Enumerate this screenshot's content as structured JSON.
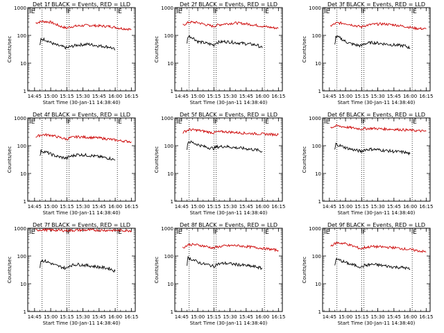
{
  "figure": {
    "background": "#ffffff",
    "colors": {
      "events": "#000000",
      "lld": "#cc0000",
      "axes": "#000000"
    }
  },
  "chart_data": [
    {
      "type": "line",
      "title": "Det 1f BLACK = Events, RED = LLD",
      "xlabel": "Start Time (30-Jan-11 14:38:40)",
      "ylabel": "Counts/sec",
      "x_ticks": [
        "14:45",
        "15:00",
        "15:15",
        "15:30",
        "15:45",
        "16:00",
        "16:15"
      ],
      "xlim": [
        "14:38:40",
        "16:18:40"
      ],
      "y_scale": "log",
      "ylim": [
        1,
        1000
      ],
      "y_ticks": [
        "1",
        "10",
        "100",
        "1000"
      ],
      "markers": [
        {
          "label": "E",
          "time": "14:41"
        },
        {
          "label": "F",
          "time": "15:15"
        },
        {
          "label": "E",
          "time": "16:02"
        }
      ],
      "dotted_lines": [
        "14:52",
        "15:15",
        "15:17",
        "16:02"
      ],
      "series": [
        {
          "name": "LLD",
          "color": "#cc0000",
          "x": [
            "14:46",
            "14:52",
            "15:00",
            "15:08",
            "15:15",
            "15:17",
            "15:25",
            "15:35",
            "15:45",
            "15:55",
            "16:05",
            "16:15"
          ],
          "y": [
            280,
            320,
            300,
            220,
            180,
            200,
            220,
            230,
            220,
            210,
            180,
            165
          ]
        },
        {
          "name": "Events",
          "color": "#000000",
          "x": [
            "14:50",
            "14:51",
            "14:55",
            "15:00",
            "15:05",
            "15:10",
            "15:15",
            "15:17",
            "15:25",
            "15:35",
            "15:45",
            "15:55",
            "16:00"
          ],
          "y": [
            40,
            75,
            70,
            55,
            45,
            40,
            35,
            38,
            45,
            48,
            42,
            38,
            30
          ]
        }
      ]
    },
    {
      "type": "line",
      "title": "Det 2f BLACK = Events, RED = LLD",
      "xlabel": "Start Time (30-Jan-11 14:38:40)",
      "ylabel": "Counts/sec",
      "x_ticks": [
        "14:45",
        "15:00",
        "15:15",
        "15:30",
        "15:45",
        "16:00",
        "16:15"
      ],
      "xlim": [
        "14:38:40",
        "16:18:40"
      ],
      "y_scale": "log",
      "ylim": [
        1,
        1000
      ],
      "y_ticks": [
        "1",
        "10",
        "100",
        "1000"
      ],
      "markers": [
        {
          "label": "E",
          "time": "14:41"
        },
        {
          "label": "F",
          "time": "15:15"
        },
        {
          "label": "E",
          "time": "16:02"
        }
      ],
      "dotted_lines": [
        "14:52",
        "15:15",
        "15:17",
        "16:02"
      ],
      "series": [
        {
          "name": "LLD",
          "color": "#cc0000",
          "x": [
            "14:46",
            "14:52",
            "15:00",
            "15:08",
            "15:15",
            "15:17",
            "15:25",
            "15:35",
            "15:45",
            "15:55",
            "16:05",
            "16:15"
          ],
          "y": [
            230,
            300,
            290,
            240,
            210,
            230,
            260,
            280,
            260,
            230,
            200,
            180
          ]
        },
        {
          "name": "Events",
          "color": "#000000",
          "x": [
            "14:50",
            "14:51",
            "14:55",
            "15:00",
            "15:05",
            "15:10",
            "15:15",
            "15:17",
            "15:25",
            "15:35",
            "15:45",
            "15:55",
            "16:00"
          ],
          "y": [
            55,
            95,
            85,
            60,
            55,
            50,
            45,
            55,
            60,
            55,
            50,
            45,
            35
          ]
        }
      ]
    },
    {
      "type": "line",
      "title": "Det 3f BLACK = Events, RED = LLD",
      "xlabel": "Start Time (30-Jan-11 14:38:40)",
      "ylabel": "Counts/sec",
      "x_ticks": [
        "14:45",
        "15:00",
        "15:15",
        "15:30",
        "15:45",
        "16:00",
        "16:15"
      ],
      "xlim": [
        "14:38:40",
        "16:18:40"
      ],
      "y_scale": "log",
      "ylim": [
        1,
        1000
      ],
      "y_ticks": [
        "1",
        "10",
        "100",
        "1000"
      ],
      "markers": [
        {
          "label": "E",
          "time": "14:41"
        },
        {
          "label": "F",
          "time": "15:15"
        },
        {
          "label": "E",
          "time": "16:02"
        }
      ],
      "dotted_lines": [
        "14:52",
        "15:15",
        "15:17",
        "16:02"
      ],
      "series": [
        {
          "name": "LLD",
          "color": "#cc0000",
          "x": [
            "14:46",
            "14:52",
            "15:00",
            "15:08",
            "15:15",
            "15:17",
            "15:25",
            "15:35",
            "15:45",
            "15:55",
            "16:05",
            "16:15"
          ],
          "y": [
            220,
            280,
            270,
            230,
            200,
            220,
            250,
            260,
            240,
            210,
            180,
            170
          ]
        },
        {
          "name": "Events",
          "color": "#000000",
          "x": [
            "14:50",
            "14:51",
            "14:55",
            "15:00",
            "15:05",
            "15:10",
            "15:15",
            "15:17",
            "15:25",
            "15:35",
            "15:45",
            "15:55",
            "16:00"
          ],
          "y": [
            45,
            90,
            80,
            60,
            50,
            45,
            42,
            50,
            55,
            50,
            45,
            42,
            35
          ]
        }
      ]
    },
    {
      "type": "line",
      "title": "Det 4f BLACK = Events, RED = LLD",
      "xlabel": "Start Time (30-Jan-11 14:38:40)",
      "ylabel": "Counts/sec",
      "x_ticks": [
        "14:45",
        "15:00",
        "15:15",
        "15:30",
        "15:45",
        "16:00",
        "16:15"
      ],
      "xlim": [
        "14:38:40",
        "16:18:40"
      ],
      "y_scale": "log",
      "ylim": [
        1,
        1000
      ],
      "y_ticks": [
        "1",
        "10",
        "100",
        "1000"
      ],
      "markers": [
        {
          "label": "E",
          "time": "14:41"
        },
        {
          "label": "F",
          "time": "15:15"
        },
        {
          "label": "E",
          "time": "16:02"
        }
      ],
      "dotted_lines": [
        "14:52",
        "15:15",
        "15:17",
        "16:02"
      ],
      "series": [
        {
          "name": "LLD",
          "color": "#cc0000",
          "x": [
            "14:46",
            "14:52",
            "15:00",
            "15:08",
            "15:15",
            "15:17",
            "15:25",
            "15:35",
            "15:45",
            "15:55",
            "16:05",
            "16:15"
          ],
          "y": [
            210,
            250,
            240,
            200,
            170,
            190,
            210,
            200,
            190,
            170,
            150,
            140
          ]
        },
        {
          "name": "Events",
          "color": "#000000",
          "x": [
            "14:50",
            "14:51",
            "14:55",
            "15:00",
            "15:05",
            "15:10",
            "15:15",
            "15:17",
            "15:25",
            "15:35",
            "15:45",
            "15:55",
            "16:00"
          ],
          "y": [
            40,
            65,
            60,
            50,
            42,
            38,
            35,
            40,
            48,
            45,
            40,
            35,
            30
          ]
        }
      ]
    },
    {
      "type": "line",
      "title": "Det 5f BLACK = Events, RED = LLD",
      "xlabel": "Start Time (30-Jan-11 14:38:40)",
      "ylabel": "Counts/sec",
      "x_ticks": [
        "14:45",
        "15:00",
        "15:15",
        "15:30",
        "15:45",
        "16:00",
        "16:15"
      ],
      "xlim": [
        "14:38:40",
        "16:18:40"
      ],
      "y_scale": "log",
      "ylim": [
        1,
        1000
      ],
      "y_ticks": [
        "1",
        "10",
        "100",
        "1000"
      ],
      "markers": [
        {
          "label": "E",
          "time": "14:41"
        },
        {
          "label": "F",
          "time": "15:15"
        },
        {
          "label": "E",
          "time": "16:02"
        }
      ],
      "dotted_lines": [
        "14:52",
        "15:15",
        "15:17",
        "16:02"
      ],
      "series": [
        {
          "name": "LLD",
          "color": "#cc0000",
          "x": [
            "14:46",
            "14:52",
            "15:00",
            "15:08",
            "15:15",
            "15:17",
            "15:25",
            "15:35",
            "15:45",
            "15:55",
            "16:05",
            "16:15"
          ],
          "y": [
            300,
            380,
            360,
            320,
            290,
            310,
            320,
            300,
            280,
            270,
            260,
            250
          ]
        },
        {
          "name": "Events",
          "color": "#000000",
          "x": [
            "14:50",
            "14:51",
            "14:55",
            "15:00",
            "15:05",
            "15:10",
            "15:15",
            "15:17",
            "15:25",
            "15:35",
            "15:45",
            "15:55",
            "16:00"
          ],
          "y": [
            80,
            140,
            130,
            110,
            95,
            85,
            80,
            90,
            95,
            85,
            78,
            70,
            62
          ]
        }
      ]
    },
    {
      "type": "line",
      "title": "Det 6f BLACK = Events, RED = LLD",
      "xlabel": "Start Time (30-Jan-11 14:38:40)",
      "ylabel": "Counts/sec",
      "x_ticks": [
        "14:45",
        "15:00",
        "15:15",
        "15:30",
        "15:45",
        "16:00",
        "16:15"
      ],
      "xlim": [
        "14:38:40",
        "16:18:40"
      ],
      "y_scale": "log",
      "ylim": [
        1,
        1000
      ],
      "y_ticks": [
        "1",
        "10",
        "100",
        "1000"
      ],
      "markers": [
        {
          "label": "E",
          "time": "14:41"
        },
        {
          "label": "F",
          "time": "15:15"
        },
        {
          "label": "E",
          "time": "16:02"
        }
      ],
      "dotted_lines": [
        "14:52",
        "15:15",
        "15:17",
        "16:02"
      ],
      "series": [
        {
          "name": "LLD",
          "color": "#cc0000",
          "x": [
            "14:46",
            "14:52",
            "15:00",
            "15:08",
            "15:15",
            "15:17",
            "15:25",
            "15:35",
            "15:45",
            "15:55",
            "16:05",
            "16:15"
          ],
          "y": [
            450,
            520,
            470,
            430,
            400,
            410,
            420,
            400,
            390,
            370,
            350,
            330
          ]
        },
        {
          "name": "Events",
          "color": "#000000",
          "x": [
            "14:50",
            "14:51",
            "14:55",
            "15:00",
            "15:05",
            "15:10",
            "15:15",
            "15:17",
            "15:25",
            "15:35",
            "15:45",
            "15:55",
            "16:00"
          ],
          "y": [
            70,
            115,
            100,
            85,
            75,
            68,
            62,
            72,
            75,
            68,
            62,
            58,
            50
          ]
        }
      ]
    },
    {
      "type": "line",
      "title": "Det 7f BLACK = Events, RED = LLD",
      "xlabel": "Start Time (30-Jan-11 14:38:40)",
      "ylabel": "Counts/sec",
      "x_ticks": [
        "14:45",
        "15:00",
        "15:15",
        "15:30",
        "15:45",
        "16:00",
        "16:15"
      ],
      "xlim": [
        "14:38:40",
        "16:18:40"
      ],
      "y_scale": "log",
      "ylim": [
        1,
        1000
      ],
      "y_ticks": [
        "1",
        "10",
        "100",
        "1000"
      ],
      "markers": [
        {
          "label": "E",
          "time": "14:41"
        },
        {
          "label": "F",
          "time": "15:15"
        },
        {
          "label": "E",
          "time": "16:02"
        }
      ],
      "dotted_lines": [
        "14:52",
        "15:15",
        "15:17",
        "16:02"
      ],
      "series": [
        {
          "name": "LLD",
          "color": "#cc0000",
          "x": [
            "14:46",
            "14:52",
            "15:00",
            "15:08",
            "15:15",
            "15:17",
            "15:25",
            "15:35",
            "15:45",
            "15:55",
            "16:05",
            "16:15"
          ],
          "y": [
            850,
            880,
            860,
            840,
            820,
            830,
            850,
            860,
            850,
            840,
            830,
            820
          ]
        },
        {
          "name": "Events",
          "color": "#000000",
          "x": [
            "14:50",
            "14:51",
            "14:55",
            "15:00",
            "15:05",
            "15:10",
            "15:15",
            "15:17",
            "15:25",
            "15:35",
            "15:45",
            "15:55",
            "16:00"
          ],
          "y": [
            40,
            70,
            65,
            55,
            45,
            40,
            35,
            45,
            50,
            45,
            40,
            35,
            28
          ]
        }
      ]
    },
    {
      "type": "line",
      "title": "Det 8f BLACK = Events, RED = LLD",
      "xlabel": "Start Time (30-Jan-11 14:38:40)",
      "ylabel": "Counts/sec",
      "x_ticks": [
        "14:45",
        "15:00",
        "15:15",
        "15:30",
        "15:45",
        "16:00",
        "16:15"
      ],
      "xlim": [
        "14:38:40",
        "16:18:40"
      ],
      "y_scale": "log",
      "ylim": [
        1,
        1000
      ],
      "y_ticks": [
        "1",
        "10",
        "100",
        "1000"
      ],
      "markers": [
        {
          "label": "E",
          "time": "14:41"
        },
        {
          "label": "F",
          "time": "15:15"
        },
        {
          "label": "E",
          "time": "16:02"
        }
      ],
      "dotted_lines": [
        "14:52",
        "15:15",
        "15:17",
        "16:02"
      ],
      "series": [
        {
          "name": "LLD",
          "color": "#cc0000",
          "x": [
            "14:46",
            "14:52",
            "15:00",
            "15:08",
            "15:15",
            "15:17",
            "15:25",
            "15:35",
            "15:45",
            "15:55",
            "16:05",
            "16:15"
          ],
          "y": [
            200,
            260,
            250,
            220,
            190,
            210,
            230,
            240,
            220,
            200,
            180,
            160
          ]
        },
        {
          "name": "Events",
          "color": "#000000",
          "x": [
            "14:50",
            "14:51",
            "14:55",
            "15:00",
            "15:05",
            "15:10",
            "15:15",
            "15:17",
            "15:25",
            "15:35",
            "15:45",
            "15:55",
            "16:00"
          ],
          "y": [
            50,
            85,
            75,
            60,
            52,
            48,
            42,
            50,
            55,
            50,
            45,
            40,
            35
          ]
        }
      ]
    },
    {
      "type": "line",
      "title": "Det 9f BLACK = Events, RED = LLD",
      "xlabel": "Start Time (30-Jan-11 14:38:40)",
      "ylabel": "Counts/sec",
      "x_ticks": [
        "14:45",
        "15:00",
        "15:15",
        "15:30",
        "15:45",
        "16:00",
        "16:15"
      ],
      "xlim": [
        "14:38:40",
        "16:18:40"
      ],
      "y_scale": "log",
      "ylim": [
        1,
        1000
      ],
      "y_ticks": [
        "1",
        "10",
        "100",
        "1000"
      ],
      "markers": [
        {
          "label": "E",
          "time": "14:41"
        },
        {
          "label": "F",
          "time": "15:15"
        },
        {
          "label": "E",
          "time": "16:02"
        }
      ],
      "dotted_lines": [
        "14:52",
        "15:15",
        "15:17",
        "16:02"
      ],
      "series": [
        {
          "name": "LLD",
          "color": "#cc0000",
          "x": [
            "14:46",
            "14:52",
            "15:00",
            "15:08",
            "15:15",
            "15:17",
            "15:25",
            "15:35",
            "15:45",
            "15:55",
            "16:05",
            "16:15"
          ],
          "y": [
            230,
            300,
            280,
            220,
            180,
            200,
            220,
            210,
            200,
            180,
            160,
            140
          ]
        },
        {
          "name": "Events",
          "color": "#000000",
          "x": [
            "14:50",
            "14:51",
            "14:55",
            "15:00",
            "15:05",
            "15:10",
            "15:15",
            "15:17",
            "15:25",
            "15:35",
            "15:45",
            "15:55",
            "16:00"
          ],
          "y": [
            45,
            75,
            70,
            58,
            50,
            45,
            40,
            45,
            50,
            45,
            40,
            38,
            33
          ]
        }
      ]
    }
  ]
}
